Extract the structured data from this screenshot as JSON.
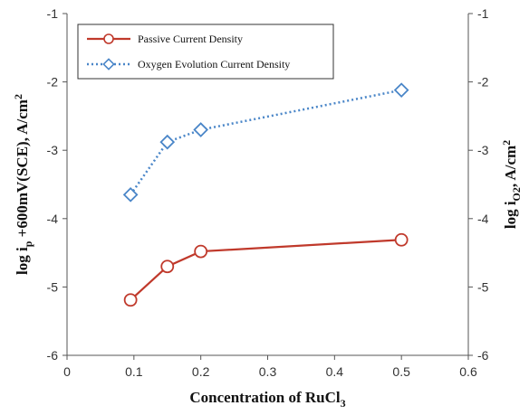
{
  "chart_data": {
    "type": "line",
    "xlabel": {
      "main": "Concentration of RuCl",
      "sub": "3"
    },
    "ylabel_left": {
      "pre": "log i",
      "sub": "p",
      "post": " +600mV(SCE), A/cm",
      "sup": "2"
    },
    "ylabel_right": {
      "pre": "log i",
      "sub": "O2",
      "post": ", A/cm",
      "sup": "2"
    },
    "xlim": [
      0,
      0.6
    ],
    "ylim": [
      -6,
      -1
    ],
    "x_ticks": [
      "0",
      "0.1",
      "0.2",
      "0.3",
      "0.4",
      "0.5",
      "0.6"
    ],
    "y_ticks": [
      "-6",
      "-5",
      "-4",
      "-3",
      "-2",
      "-1"
    ],
    "legend_position": "top-left",
    "grid": false,
    "series": [
      {
        "name": "Passive Current Density",
        "color": "#c0392b",
        "line_style": "solid",
        "marker": "circle",
        "x": [
          0.095,
          0.15,
          0.2,
          0.5
        ],
        "y": [
          -5.19,
          -4.7,
          -4.48,
          -4.31
        ]
      },
      {
        "name": "Oxygen Evolution Current Density",
        "color": "#4a86c8",
        "line_style": "dotted",
        "marker": "diamond",
        "x": [
          0.095,
          0.15,
          0.2,
          0.5
        ],
        "y": [
          -3.65,
          -2.88,
          -2.7,
          -2.12
        ]
      }
    ]
  }
}
